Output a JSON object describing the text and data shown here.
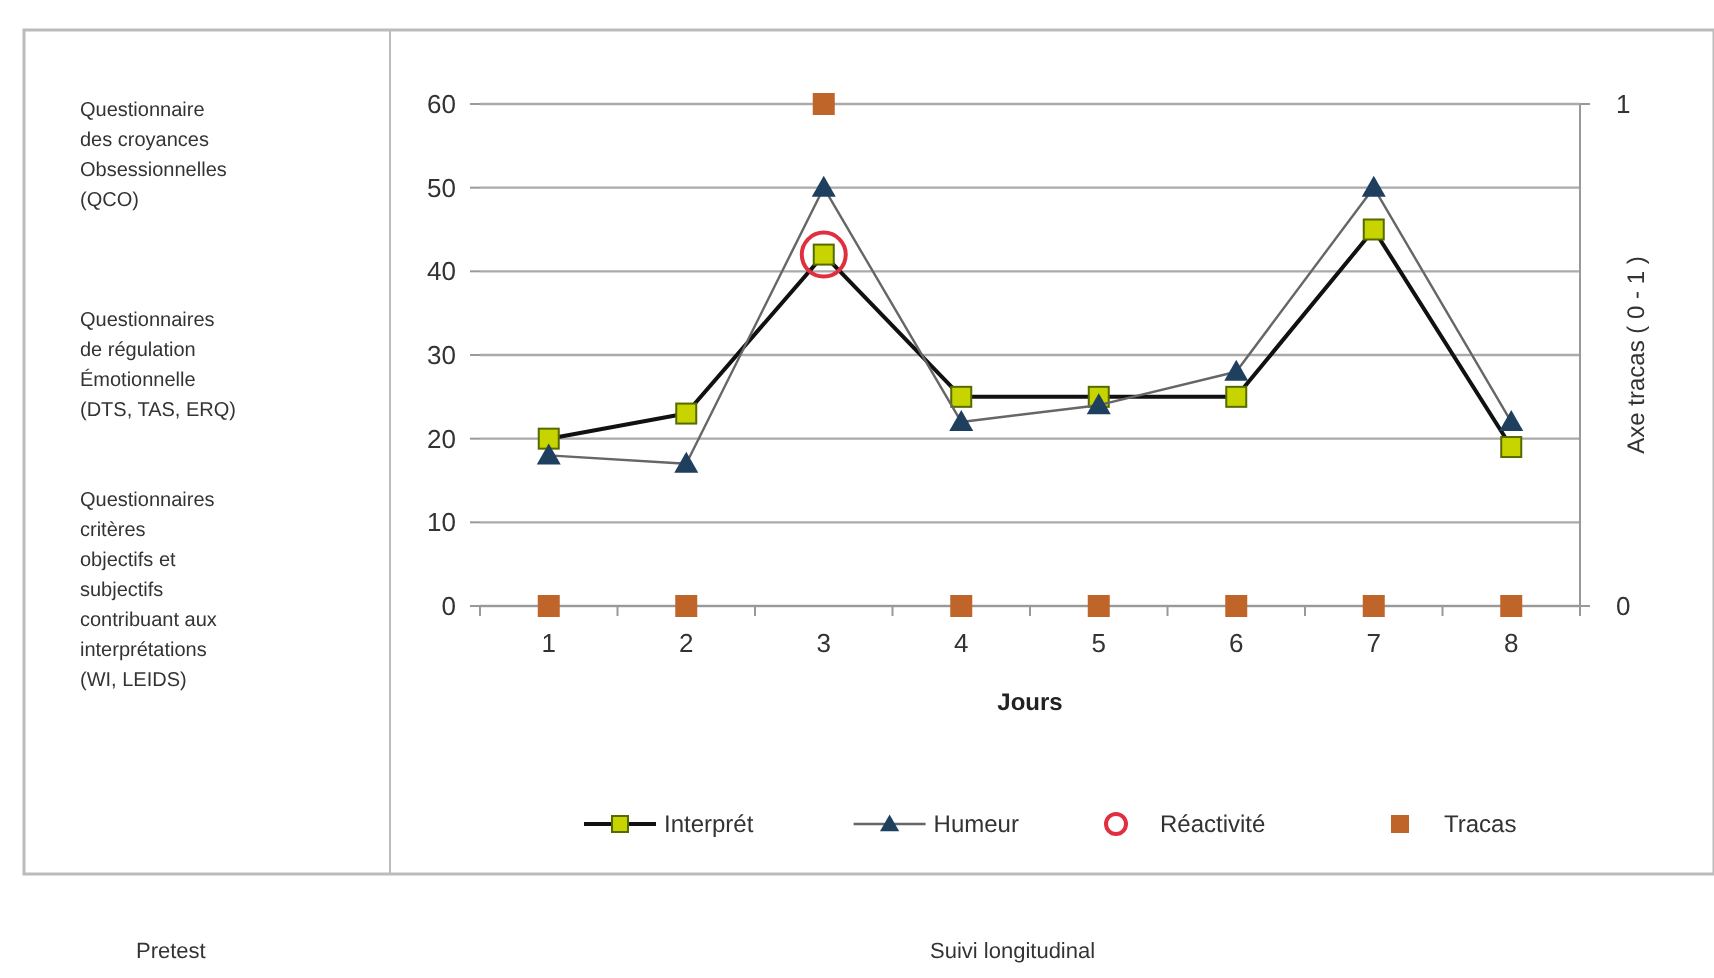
{
  "chart_data": {
    "type": "line",
    "xlabel": "Jours",
    "y2label": "Axe tracas ( 0 - 1 )",
    "categories": [
      "1",
      "2",
      "3",
      "4",
      "5",
      "6",
      "7",
      "8"
    ],
    "series": [
      {
        "name": "Interprét",
        "type": "line",
        "color": "#c8d400",
        "marker": "square",
        "values": [
          20,
          23,
          42,
          25,
          25,
          25,
          45,
          19
        ]
      },
      {
        "name": "Humeur",
        "type": "line",
        "color": "#1f3f5f",
        "marker": "triangle",
        "values": [
          18,
          17,
          50,
          22,
          24,
          28,
          50,
          22
        ]
      },
      {
        "name": "Réactivité",
        "type": "scatter",
        "color": "#e03040",
        "marker": "circle",
        "values": [
          null,
          null,
          42,
          null,
          null,
          null,
          null,
          null
        ]
      },
      {
        "name": "Tracas",
        "type": "scatter",
        "color": "#c0652a",
        "marker": "square",
        "axis": "y2",
        "values": [
          0,
          0,
          1,
          0,
          0,
          0,
          0,
          0
        ]
      }
    ],
    "ylim": [
      0,
      60
    ],
    "yticks": [
      0,
      10,
      20,
      30,
      40,
      50,
      60
    ],
    "y2lim": [
      0,
      1
    ],
    "y2ticks": [
      0,
      1
    ],
    "grid": "y",
    "legend": "bottom",
    "annotations": [
      "Questionnaire des croyances Obsessionnelles (QCO)",
      "Questionnaires de régulation Émotionnelle (DTS, TAS, ERQ)",
      "Questionnaires critères objectifs et subjectifs contribuant aux interprétations (WI, LEIDS)",
      "Pretest",
      "Suivi longitudinal"
    ]
  }
}
